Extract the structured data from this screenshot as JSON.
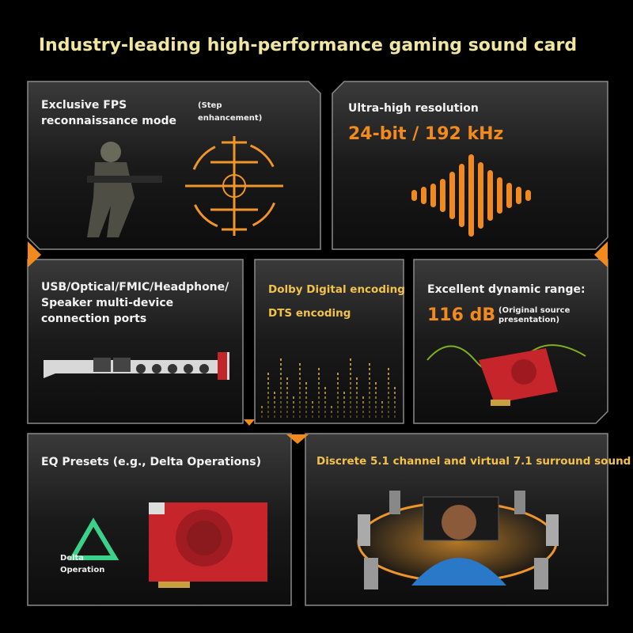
{
  "header": {
    "title": "Industry-leading high-performance gaming sound card"
  },
  "panels": [
    {
      "heading": [
        "Exclusive FPS",
        "reconnaissance mode"
      ],
      "note": [
        "(Step",
        "enhancement)"
      ]
    },
    {
      "heading": "Ultra-high resolution",
      "highlight": "24-bit / 192 kHz"
    },
    {
      "heading": [
        "USB/Optical/FMIC/Headphone/",
        "Speaker multi-device",
        "connection ports"
      ]
    },
    {
      "heading": "Dolby Digital encoding",
      "subheading": "DTS encoding"
    },
    {
      "heading": "Excellent dynamic range:",
      "highlight": "116 dB",
      "note": [
        "(Original source",
        "presentation)"
      ]
    },
    {
      "heading": "EQ Presets (e.g., Delta Operations)",
      "badge": [
        "Delta",
        "Operation"
      ]
    },
    {
      "heading": "Discrete 5.1 channel and virtual 7.1 surround sound"
    }
  ]
}
